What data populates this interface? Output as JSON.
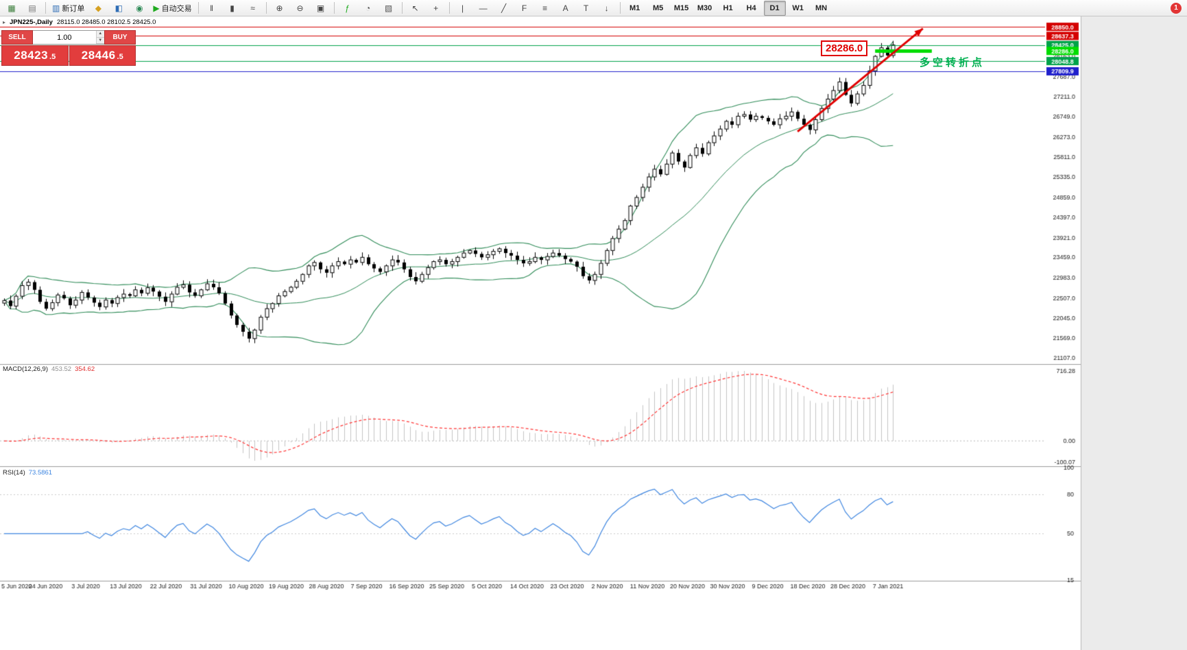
{
  "toolbar": {
    "notification_count": "1",
    "active_timeframe": "D1",
    "items": [
      {
        "type": "btn",
        "name": "new-chart",
        "glyph": "▦",
        "color": "#3a7d3a"
      },
      {
        "type": "btn",
        "name": "profiles",
        "glyph": "▤",
        "color": "#777777"
      },
      {
        "type": "sep"
      },
      {
        "type": "btn",
        "name": "new-order",
        "glyph": "▥",
        "color": "#2f6db5",
        "label": "新订单"
      },
      {
        "type": "btn",
        "name": "market-watch",
        "glyph": "◆",
        "color": "#d5a021"
      },
      {
        "type": "btn",
        "name": "data-window",
        "glyph": "◧",
        "color": "#2f6db5"
      },
      {
        "type": "btn",
        "name": "navigator",
        "glyph": "◉",
        "color": "#2e8b57"
      },
      {
        "type": "btn",
        "name": "autotrading",
        "glyph": "▶",
        "color": "#1faa1f",
        "label": "自动交易"
      },
      {
        "type": "sep"
      },
      {
        "type": "btn",
        "name": "bar-chart-mode",
        "glyph": "‖",
        "color": "#444444"
      },
      {
        "type": "btn",
        "name": "candlestick-mode",
        "glyph": "▮",
        "color": "#444444"
      },
      {
        "type": "btn",
        "name": "line-chart-mode",
        "glyph": "≈",
        "color": "#444444"
      },
      {
        "type": "sep"
      },
      {
        "type": "btn",
        "name": "zoom-in",
        "glyph": "⊕",
        "color": "#444444"
      },
      {
        "type": "btn",
        "name": "zoom-out",
        "glyph": "⊖",
        "color": "#444444"
      },
      {
        "type": "btn",
        "name": "tile-windows",
        "glyph": "▣",
        "color": "#444444"
      },
      {
        "type": "sep"
      },
      {
        "type": "btn",
        "name": "indicators",
        "glyph": "ƒ",
        "color": "#1faa1f"
      },
      {
        "type": "btn",
        "name": "periods-menu",
        "glyph": "◔",
        "color": "#555555"
      },
      {
        "type": "btn",
        "name": "templates",
        "glyph": "▧",
        "color": "#555555"
      },
      {
        "type": "sep"
      },
      {
        "type": "btn",
        "name": "cursor-tool",
        "glyph": "↖",
        "color": "#444444"
      },
      {
        "type": "btn",
        "name": "crosshair-tool",
        "glyph": "+",
        "color": "#444444"
      },
      {
        "type": "sep"
      },
      {
        "type": "btn",
        "name": "vertical-line-tool",
        "glyph": "|",
        "color": "#444444"
      },
      {
        "type": "btn",
        "name": "horizontal-line-tool",
        "glyph": "—",
        "color": "#444444"
      },
      {
        "type": "btn",
        "name": "trendline-tool",
        "glyph": "╱",
        "color": "#444444"
      },
      {
        "type": "btn",
        "name": "fibonacci-tool",
        "glyph": "F",
        "color": "#444444"
      },
      {
        "type": "btn",
        "name": "shapes-tool",
        "glyph": "≡",
        "color": "#444444"
      },
      {
        "type": "btn",
        "name": "text-tool",
        "glyph": "A",
        "color": "#444444"
      },
      {
        "type": "btn",
        "name": "label-tool",
        "glyph": "T",
        "color": "#444444"
      },
      {
        "type": "btn",
        "name": "arrow-objects-tool",
        "glyph": "↓",
        "color": "#444444"
      },
      {
        "type": "sep"
      },
      {
        "type": "tf",
        "label": "M1"
      },
      {
        "type": "tf",
        "label": "M5"
      },
      {
        "type": "tf",
        "label": "M15"
      },
      {
        "type": "tf",
        "label": "M30"
      },
      {
        "type": "tf",
        "label": "H1"
      },
      {
        "type": "tf",
        "label": "H4"
      },
      {
        "type": "tf",
        "label": "D1"
      },
      {
        "type": "tf",
        "label": "W1"
      },
      {
        "type": "tf",
        "label": "MN"
      }
    ]
  },
  "icons": {
    "collapse": "▸",
    "volume_up": "▲",
    "volume_down": "▼"
  },
  "chart": {
    "symbol_period": "JPN225-,Daily",
    "ohlc": "28115.0 28485.0 28102.5 28425.0"
  },
  "trade_panel": {
    "sell_label": "SELL",
    "buy_label": "BUY",
    "volume": "1.00",
    "sell_price": {
      "main": "28423",
      "frac": ".5"
    },
    "buy_price": {
      "main": "28446",
      "frac": ".5"
    }
  },
  "annotations": {
    "price_callout": "28286.0",
    "turning_point": "多空转折点"
  },
  "indicator_labels": {
    "macd_name": "MACD(12,26,9)",
    "macd_main": "453.52",
    "macd_signal": "354.62",
    "rsi_name": "RSI(14)",
    "rsi_value": "73.5861"
  },
  "chart_data": {
    "type": "candlestick",
    "symbol": "JPN225-",
    "timeframe": "Daily",
    "y_range": [
      20980,
      29060
    ],
    "y_axis_labels": [
      "28163.0",
      "27687.0",
      "27211.0",
      "26749.0",
      "26273.0",
      "25811.0",
      "25335.0",
      "24859.0",
      "24397.0",
      "23921.0",
      "23459.0",
      "22983.0",
      "22507.0",
      "22045.0",
      "21569.0",
      "21107.0"
    ],
    "x_labels": [
      "5 Jun 2020",
      "24 Jun 2020",
      "3 Jul 2020",
      "13 Jul 2020",
      "22 Jul 2020",
      "31 Jul 2020",
      "10 Aug 2020",
      "19 Aug 2020",
      "28 Aug 2020",
      "7 Sep 2020",
      "16 Sep 2020",
      "25 Sep 2020",
      "5 Oct 2020",
      "14 Oct 2020",
      "23 Oct 2020",
      "2 Nov 2020",
      "11 Nov 2020",
      "20 Nov 2020",
      "30 Nov 2020",
      "9 Dec 2020",
      "18 Dec 2020",
      "28 Dec 2020",
      "7 Jan 2021"
    ],
    "closes": [
      22450,
      22320,
      22550,
      22800,
      22880,
      22700,
      22420,
      22260,
      22400,
      22580,
      22500,
      22340,
      22460,
      22640,
      22520,
      22400,
      22300,
      22460,
      22380,
      22520,
      22600,
      22560,
      22700,
      22620,
      22750,
      22660,
      22540,
      22420,
      22600,
      22760,
      22820,
      22640,
      22560,
      22700,
      22840,
      22760,
      22620,
      22380,
      22100,
      21880,
      21720,
      21560,
      21760,
      22060,
      22260,
      22380,
      22560,
      22660,
      22760,
      22900,
      23060,
      23260,
      23340,
      23180,
      23100,
      23260,
      23360,
      23300,
      23400,
      23340,
      23460,
      23300,
      23200,
      23120,
      23260,
      23400,
      23340,
      23180,
      23000,
      22900,
      23060,
      23220,
      23360,
      23400,
      23300,
      23360,
      23460,
      23560,
      23620,
      23540,
      23460,
      23520,
      23600,
      23660,
      23560,
      23500,
      23400,
      23320,
      23360,
      23460,
      23400,
      23480,
      23560,
      23500,
      23420,
      23360,
      23240,
      23020,
      22920,
      23060,
      23320,
      23620,
      23900,
      24120,
      24320,
      24660,
      24860,
      25100,
      25340,
      25520,
      25400,
      25640,
      25900,
      25700,
      25560,
      25840,
      26020,
      25880,
      26140,
      26300,
      26460,
      26640,
      26560,
      26760,
      26800,
      26680,
      26760,
      26720,
      26640,
      26560,
      26700,
      26760,
      26860,
      26700,
      26560,
      26440,
      26680,
      26940,
      27160,
      27360,
      27560,
      27260,
      27060,
      27280,
      27480,
      27820,
      28160,
      28360,
      28180,
      28425
    ],
    "lines": [
      {
        "price": 28850.0,
        "label": "28850.0",
        "color": "#d40000",
        "width": 1,
        "full": true
      },
      {
        "price": 28637.3,
        "label": "28637.3",
        "color": "#d40000",
        "width": 1,
        "full": true
      },
      {
        "price": 28425.0,
        "label": "28425.0",
        "color": "#00a24a",
        "width": 1,
        "full": true
      },
      {
        "price": 28286.0,
        "label": "28286.0",
        "color": "#00dd00",
        "width": 5,
        "full": false,
        "x1_index": 146,
        "x2_index": 155.5
      },
      {
        "price": 28048.8,
        "label": "28048.8",
        "color": "#00a24a",
        "width": 1,
        "full": true
      },
      {
        "price": 27809.9,
        "label": "27809.9",
        "color": "#2020cc",
        "width": 1,
        "full": true
      }
    ],
    "arrow": {
      "x1_index": 133,
      "price1": 26400,
      "x2_index": 154,
      "price2": 28810,
      "color": "#e00000"
    },
    "indicators": {
      "bollinger": {
        "period": 20,
        "deviation": 2,
        "color": "#2e8b57"
      },
      "macd": {
        "periods": [
          12,
          26,
          9
        ],
        "axis_labels": [
          "716.28",
          "0.00",
          "-100.07"
        ],
        "hist_color": "#c4c4c4",
        "signal_color": "#ff3333"
      },
      "rsi": {
        "period": 14,
        "range": [
          15,
          100
        ],
        "axis_labels": [
          "100",
          "80",
          "50",
          "15"
        ],
        "levels": [
          80,
          50
        ],
        "color": "#3d85e0"
      }
    }
  }
}
